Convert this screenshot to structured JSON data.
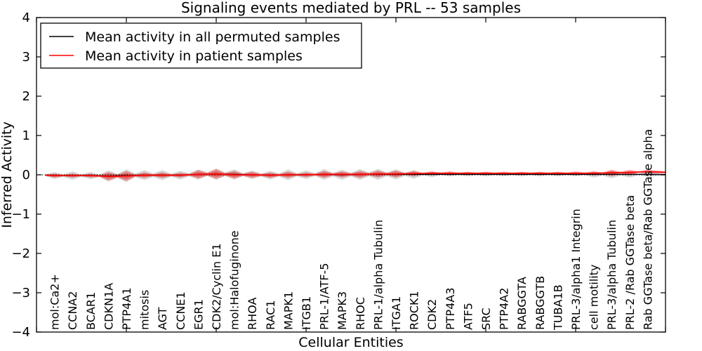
{
  "chart_data": {
    "type": "line",
    "title": "Signaling events mediated by PRL -- 53 samples",
    "xlabel": "Cellular Entities",
    "ylabel": "Inferred Activity",
    "xlim": [
      0,
      35
    ],
    "ylim": [
      -4,
      4
    ],
    "yticks": [
      4,
      3,
      2,
      1,
      0,
      -1,
      -2,
      -3,
      -4
    ],
    "xtick_values": [
      0,
      5,
      10,
      15,
      20,
      25,
      30,
      35
    ],
    "grid": false,
    "legend_position": "upper left",
    "baseline": {
      "y": 0,
      "style": "dotted",
      "color": "#000000"
    },
    "categories": [
      "mol:Ca2+",
      "CCNA2",
      "BCAR1",
      "CDKN1A",
      "PTP4A1",
      "mitosis",
      "AGT",
      "CCNE1",
      "EGR1",
      "CDK2/Cyclin E1",
      "mol:Halofuginone",
      "RHOA",
      "RAC1",
      "MAPK1",
      "ITGB1",
      "PRL-1/ATF-5",
      "MAPK3",
      "RHOC",
      "PRL-1/alpha Tubulin",
      "ITGA1",
      "ROCK1",
      "CDK2",
      "PTP4A3",
      "ATF5",
      "SRC",
      "PTP4A2",
      "RABGGTA",
      "RABGGTB",
      "TUBA1B",
      "PRL-3/alpha1 Integrin",
      "cell motility",
      "PRL-3/alpha Tubulin",
      "PRL-2 /Rab GGTase beta",
      "Rab GGTase beta/Rab GGTase alpha"
    ],
    "series": [
      {
        "name": "Mean activity in all permuted samples",
        "color": "#000000",
        "band_color": "#808080",
        "mean": [
          -0.02,
          -0.02,
          -0.02,
          -0.03,
          -0.02,
          -0.01,
          -0.01,
          -0.01,
          0.01,
          0.02,
          0.01,
          0.0,
          -0.01,
          0.0,
          0.0,
          0.01,
          0.0,
          0.01,
          0.01,
          0.01,
          0.01,
          0.01,
          0.01,
          0.01,
          0.01,
          0.01,
          0.01,
          0.01,
          0.01,
          0.01,
          0.01,
          0.01,
          0.01,
          0.01
        ],
        "band_halfwidth": [
          0.09,
          0.11,
          0.09,
          0.14,
          0.16,
          0.13,
          0.13,
          0.11,
          0.13,
          0.14,
          0.13,
          0.11,
          0.11,
          0.14,
          0.11,
          0.14,
          0.13,
          0.14,
          0.14,
          0.13,
          0.11,
          0.07,
          0.05,
          0.05,
          0.05,
          0.05,
          0.05,
          0.05,
          0.05,
          0.05,
          0.08,
          0.1,
          0.08,
          0.06
        ]
      },
      {
        "name": "Mean activity in patient samples",
        "color": "#ff0000",
        "band_color": "#ff0000",
        "mean": [
          -0.02,
          -0.02,
          -0.02,
          -0.04,
          -0.03,
          -0.01,
          -0.01,
          -0.01,
          0.01,
          0.02,
          0.0,
          0.0,
          -0.01,
          0.0,
          0.0,
          0.01,
          0.01,
          0.01,
          0.02,
          0.02,
          0.03,
          0.04,
          0.04,
          0.04,
          0.04,
          0.04,
          0.04,
          0.04,
          0.04,
          0.04,
          0.04,
          0.05,
          0.06,
          0.08
        ],
        "band_halfwidth": [
          0.05,
          0.05,
          0.05,
          0.11,
          0.13,
          0.07,
          0.07,
          0.06,
          0.11,
          0.13,
          0.1,
          0.08,
          0.07,
          0.08,
          0.06,
          0.09,
          0.08,
          0.09,
          0.09,
          0.09,
          0.07,
          0.05,
          0.05,
          0.04,
          0.04,
          0.04,
          0.04,
          0.04,
          0.04,
          0.05,
          0.05,
          0.08,
          0.07,
          0.05
        ]
      }
    ]
  }
}
